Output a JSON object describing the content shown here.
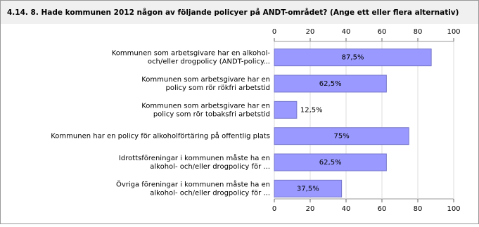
{
  "chart_data": {
    "type": "bar",
    "orientation": "horizontal",
    "title": "4.14. 8. Hade kommunen 2012 någon av följande policyer på ANDT-området? (Ange ett eller flera alternativ)",
    "categories": [
      [
        "Kommunen som arbetsgivare har en alkohol-",
        "och/eller drogpolicy (ANDT-policy..."
      ],
      [
        "Kommunen som arbetsgivare har en",
        "policy som rör rökfri arbetstid"
      ],
      [
        "Kommunen som arbetsgivare har en",
        "policy som rör tobaksfri arbetstid"
      ],
      [
        "Kommunen har en policy för alkoholförtäring på offentlig plats"
      ],
      [
        "Idrottsföreningar i kommunen måste ha en",
        "alkohol- och/eller drogpolicy för ..."
      ],
      [
        "Övriga föreningar i kommunen måste ha en",
        "alkohol- och/eller drogpolicy för ..."
      ]
    ],
    "values": [
      87.5,
      62.5,
      12.5,
      75,
      62.5,
      37.5
    ],
    "value_labels": [
      "87,5%",
      "62,5%",
      "12,5%",
      "75%",
      "62,5%",
      "37,5%"
    ],
    "color": "#9999ff",
    "xlim": [
      0,
      100
    ],
    "xticks": [
      0,
      20,
      40,
      60,
      80,
      100
    ],
    "grid": true
  }
}
